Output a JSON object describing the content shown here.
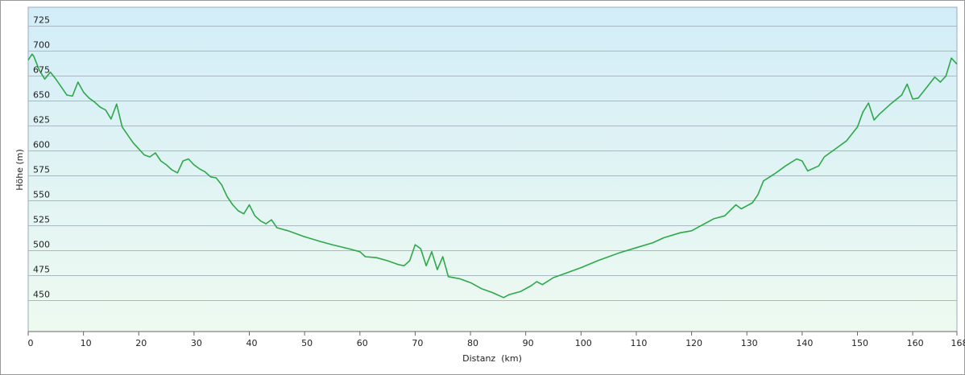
{
  "chart_data": {
    "type": "line",
    "x_label": "Distanz  (km)",
    "y_label": "Höhe (m)",
    "xlim": [
      0,
      168
    ],
    "ylim": [
      419,
      744
    ],
    "xticks": [
      0,
      10,
      20,
      30,
      40,
      50,
      60,
      70,
      80,
      90,
      100,
      110,
      120,
      130,
      140,
      150,
      160,
      168
    ],
    "yticks": [
      450,
      475,
      500,
      525,
      550,
      575,
      600,
      625,
      650,
      675,
      700,
      725
    ],
    "grid": true,
    "x": [
      0,
      0.7,
      1,
      2,
      3,
      4,
      5,
      6,
      7,
      8,
      9,
      10,
      11,
      12,
      13,
      14,
      15,
      16,
      17,
      18,
      19,
      20,
      21,
      22,
      23,
      24,
      25,
      26,
      27,
      28,
      29,
      30,
      31,
      32,
      33,
      34,
      35,
      36,
      37,
      38,
      39,
      40,
      41,
      42,
      43,
      44,
      45,
      47,
      50,
      53,
      55,
      58,
      60,
      61,
      63,
      65,
      67,
      68,
      69,
      70,
      71,
      72,
      73,
      74,
      75,
      76,
      78,
      80,
      82,
      84,
      86,
      87,
      89,
      91,
      92,
      93,
      95,
      97,
      100,
      103,
      105,
      107,
      110,
      113,
      115,
      118,
      120,
      122,
      124,
      126,
      128,
      129,
      131,
      132,
      133,
      135,
      137,
      139,
      140,
      141,
      143,
      144,
      146,
      148,
      150,
      151,
      152,
      153,
      154,
      156,
      158,
      159,
      160,
      161,
      162,
      164,
      165,
      166,
      167,
      168
    ],
    "series": [
      {
        "name": "Höhe",
        "color": "#2ea84a",
        "values": [
          691,
          697,
          695,
          681,
          672,
          679,
          672,
          664,
          656,
          655,
          669,
          659,
          653,
          649,
          644,
          641,
          632,
          647,
          624,
          616,
          608,
          602,
          596,
          594,
          598,
          590,
          586,
          581,
          578,
          590,
          592,
          586,
          582,
          579,
          574,
          573,
          566,
          554,
          546,
          540,
          537,
          546,
          535,
          530,
          527,
          531,
          523,
          520,
          514,
          509,
          506,
          502,
          499,
          494,
          493,
          490,
          486,
          485,
          490,
          506,
          502,
          485,
          499,
          481,
          494,
          474,
          472,
          468,
          462,
          458,
          453,
          456,
          459,
          465,
          469,
          466,
          473,
          477,
          483,
          490,
          494,
          498,
          503,
          508,
          513,
          518,
          520,
          526,
          532,
          535,
          546,
          542,
          548,
          556,
          570,
          577,
          585,
          592,
          590,
          580,
          585,
          594,
          602,
          610,
          624,
          639,
          648,
          631,
          637,
          647,
          656,
          667,
          652,
          653,
          660,
          674,
          669,
          675,
          693,
          687
        ]
      }
    ]
  }
}
